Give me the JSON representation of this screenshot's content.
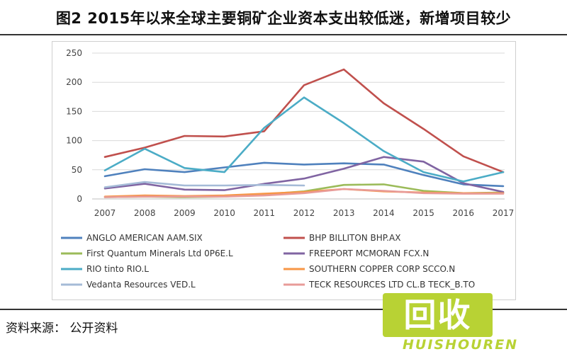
{
  "header": {
    "title": "图2   2015年以来全球主要铜矿企业资本支出较低迷，新增项目较少"
  },
  "footer": {
    "source": "资料来源：   公开资料"
  },
  "watermark": {
    "logo_text": "回收",
    "brand_text": "HUISHOUREN"
  },
  "chart_data": {
    "type": "line",
    "title": "",
    "xlabel": "",
    "ylabel": "",
    "x": [
      "2007",
      "2008",
      "2009",
      "2010",
      "2011",
      "2012",
      "2013",
      "2014",
      "2015",
      "2016",
      "2017"
    ],
    "ylim": [
      0,
      250
    ],
    "yticks": [
      0,
      50,
      100,
      150,
      200,
      250
    ],
    "grid": true,
    "legend_position": "bottom",
    "series": [
      {
        "name": "ANGLO AMERICAN AAM.SIX",
        "color": "#4f81bd",
        "values": [
          39,
          51,
          46,
          54,
          62,
          59,
          61,
          59,
          41,
          25,
          22
        ]
      },
      {
        "name": "BHP BILLITON  BHP.AX",
        "color": "#c0504d",
        "values": [
          72,
          88,
          108,
          107,
          116,
          195,
          222,
          164,
          120,
          73,
          46
        ]
      },
      {
        "name": "First Quantum Minerals Ltd 0P6E.L",
        "color": "#9bbb59",
        "values": [
          3,
          4,
          3,
          4,
          8,
          13,
          24,
          25,
          14,
          10,
          11
        ]
      },
      {
        "name": "FREEPORT MCMORAN FCX.N",
        "color": "#8064a2",
        "values": [
          18,
          26,
          16,
          15,
          26,
          35,
          52,
          72,
          64,
          27,
          12
        ]
      },
      {
        "name": "RIO tinto RIO.L",
        "color": "#4bacc6",
        "values": [
          49,
          86,
          53,
          46,
          122,
          174,
          130,
          82,
          46,
          30,
          46
        ]
      },
      {
        "name": "SOUTHERN COPPER CORP SCCO.N",
        "color": "#f79646",
        "values": [
          4,
          6,
          5,
          6,
          9,
          12,
          17,
          13,
          11,
          10,
          10
        ]
      },
      {
        "name": "Vedanta Resources VED.L",
        "color": "#a5bbd7",
        "values": [
          20,
          29,
          23,
          23,
          24,
          23,
          null,
          null,
          null,
          null,
          null
        ]
      },
      {
        "name": "TECK RESOURCES LTD CL.B TECK_B.TO",
        "color": "#e89b98",
        "values": [
          3,
          4,
          4,
          4,
          6,
          10,
          17,
          14,
          10,
          9,
          9
        ]
      }
    ]
  }
}
